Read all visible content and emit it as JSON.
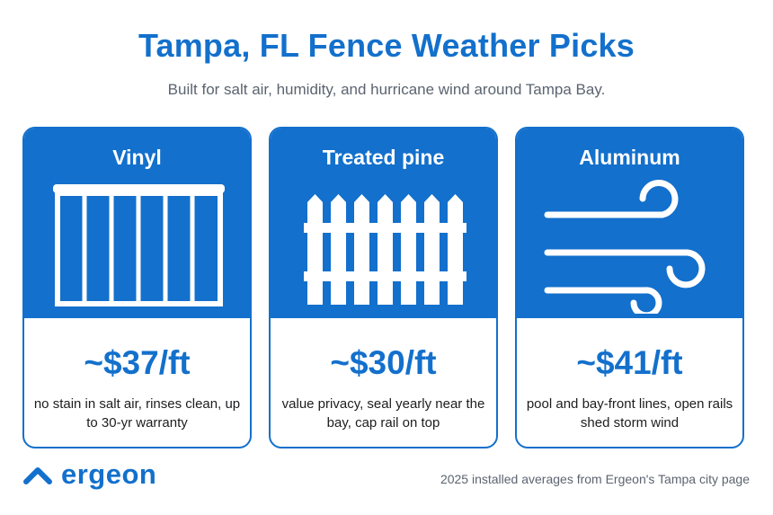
{
  "header": {
    "title": "Tampa, FL Fence Weather Picks",
    "subtitle": "Built for salt air, humidity, and hurricane wind around Tampa Bay."
  },
  "cards": [
    {
      "name": "Vinyl",
      "icon": "vinyl-panel-fence-icon",
      "price": "~$37/ft",
      "description": "no stain in salt air, rinses clean, up to 30-yr warranty"
    },
    {
      "name": "Treated pine",
      "icon": "picket-fence-icon",
      "price": "~$30/ft",
      "description": "value privacy, seal yearly near the bay, cap rail on top"
    },
    {
      "name": "Aluminum",
      "icon": "wind-icon",
      "price": "~$41/ft",
      "description": "pool and bay-front lines, open rails shed storm wind"
    }
  ],
  "footer": {
    "brand": "ergeon",
    "brand_icon": "ergeon-chevron-logo",
    "note": "2025 installed averages from Ergeon's Tampa city page"
  },
  "colors": {
    "accent": "#1370cc",
    "text": "#1d1d1f",
    "muted": "#5b6470",
    "background": "#ffffff"
  }
}
